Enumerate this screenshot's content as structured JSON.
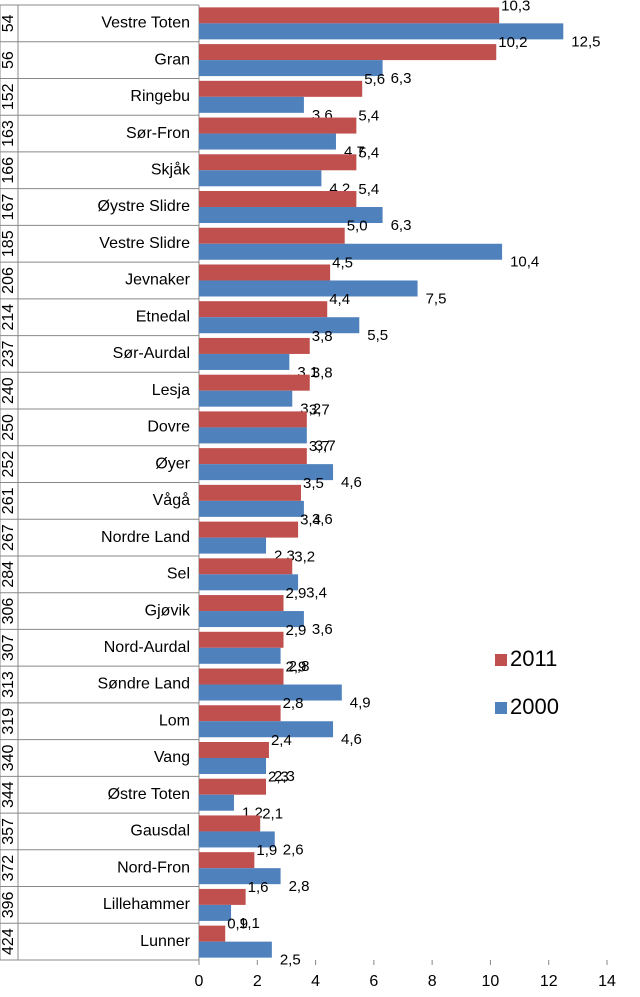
{
  "chart_data": {
    "type": "bar",
    "orientation": "horizontal",
    "ranks": [
      54,
      56,
      152,
      163,
      166,
      167,
      185,
      206,
      214,
      237,
      240,
      250,
      252,
      261,
      267,
      284,
      306,
      307,
      313,
      319,
      340,
      344,
      357,
      372,
      396,
      424
    ],
    "categories": [
      "Vestre Toten",
      "Gran",
      "Ringebu",
      "Sør-Fron",
      "Skjåk",
      "Øystre Slidre",
      "Vestre Slidre",
      "Jevnaker",
      "Etnedal",
      "Sør-Aurdal",
      "Lesja",
      "Dovre",
      "Øyer",
      "Vågå",
      "Nordre Land",
      "Sel",
      "Gjøvik",
      "Nord-Aurdal",
      "Søndre Land",
      "Lom",
      "Vang",
      "Østre Toten",
      "Gausdal",
      "Nord-Fron",
      "Lillehammer",
      "Lunner"
    ],
    "series": [
      {
        "name": "2011",
        "color": "#c0504d",
        "values": [
          10.3,
          10.2,
          5.6,
          5.4,
          5.4,
          5.4,
          5.0,
          4.5,
          4.4,
          3.8,
          3.8,
          3.7,
          3.7,
          3.5,
          3.4,
          3.2,
          2.9,
          2.9,
          2.9,
          2.8,
          2.4,
          2.3,
          2.1,
          1.9,
          1.6,
          0.9
        ],
        "value_labels": [
          "10,3",
          "10,2",
          "5,6",
          "5,4",
          "5,4",
          "5,4",
          "5,0",
          "4,5",
          "4,4",
          "3,8",
          "3,8",
          "3,7",
          "3,7",
          "3,5",
          "3,4",
          "3,2",
          "2,9",
          "2,9",
          "2,9",
          "2,8",
          "2,4",
          "2,3",
          "2,1",
          "1,9",
          "1,6",
          "0,9"
        ]
      },
      {
        "name": "2000",
        "color": "#4f81bd",
        "values": [
          12.5,
          6.3,
          3.6,
          4.7,
          4.2,
          6.3,
          10.4,
          7.5,
          5.5,
          3.1,
          3.2,
          3.7,
          4.6,
          3.6,
          2.3,
          3.4,
          3.6,
          2.8,
          4.9,
          4.6,
          2.3,
          1.2,
          2.6,
          2.8,
          1.1,
          2.5
        ],
        "value_labels": [
          "12,5",
          "6,3",
          "3,6",
          "4,7",
          "4,2",
          "6,3",
          "10,4",
          "7,5",
          "5,5",
          "3,1",
          "3,2",
          "3,7",
          "4,6",
          "3,6",
          "2,3",
          "3,4",
          "3,6",
          "2,8",
          "4,9",
          "4,6",
          "2,3",
          "1,2",
          "2,6",
          "2,8",
          "1,1",
          "2,5"
        ]
      }
    ],
    "xlim": [
      0,
      14
    ],
    "xticks": [
      0,
      2,
      4,
      6,
      8,
      10,
      12,
      14
    ],
    "legend": "right"
  }
}
